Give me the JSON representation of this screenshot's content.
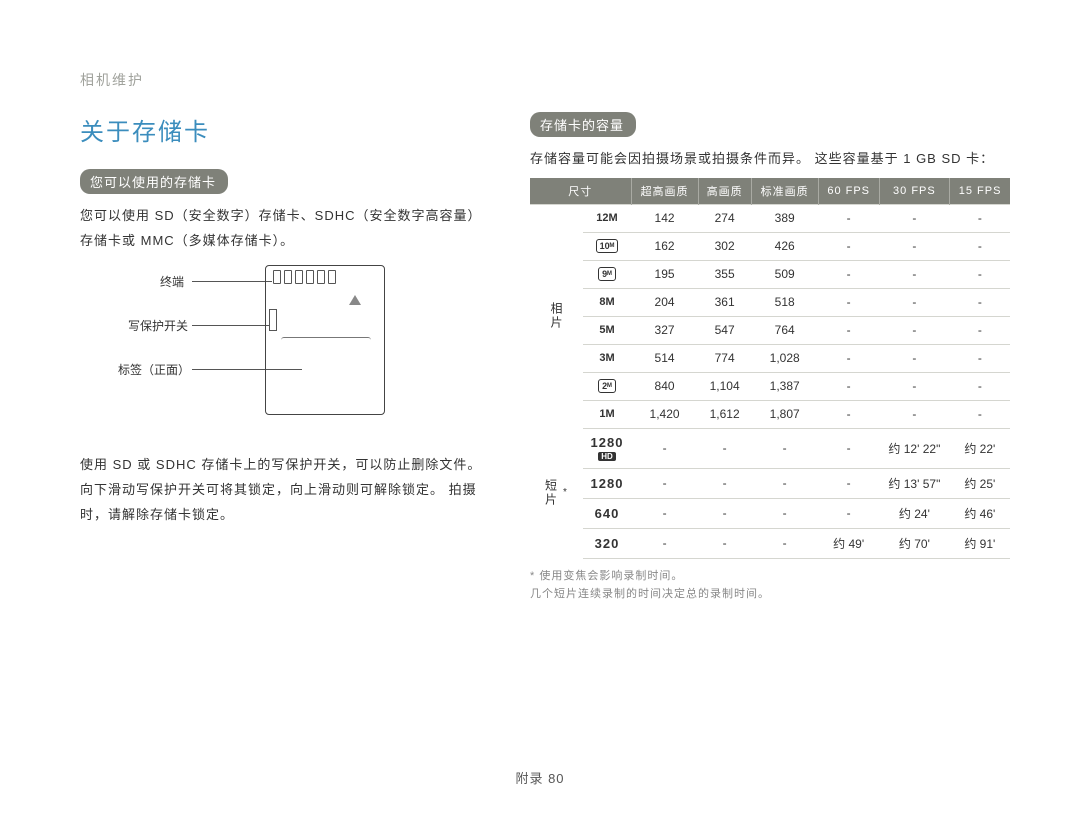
{
  "header": {
    "breadcrumb": "相机维护"
  },
  "left": {
    "title": "关于存储卡",
    "pill": "您可以使用的存储卡",
    "intro": "您可以使用 SD（安全数字）存储卡、SDHC（安全数字高容量）存储卡或 MMC（多媒体存储卡）。",
    "diag": {
      "l1": "终端",
      "l2": "写保护开关",
      "l3": "标签（正面）"
    },
    "para2": "使用 SD 或 SDHC 存储卡上的写保护开关，可以防止删除文件。 向下滑动写保护开关可将其锁定，向上滑动则可解除锁定。 拍摄时，请解除存储卡锁定。"
  },
  "right": {
    "pill": "存储卡的容量",
    "intro": "存储容量可能会因拍摄场景或拍摄条件而异。 这些容量基于 1 GB SD 卡：",
    "headers": [
      "尺寸",
      "超高画质",
      "高画质",
      "标准画质",
      "60 FPS",
      "30 FPS",
      "15 FPS"
    ],
    "vcat_photo": "相片",
    "vcat_video": "短片",
    "photo_sizes": [
      "12M",
      "10M",
      "9M",
      "8M",
      "5M",
      "3M",
      "2M",
      "1M"
    ],
    "photo_icon": [
      false,
      true,
      true,
      false,
      false,
      false,
      true,
      false
    ],
    "photo_super": [
      "142",
      "162",
      "195",
      "204",
      "327",
      "514",
      "840",
      "1,420"
    ],
    "photo_high": [
      "274",
      "302",
      "355",
      "361",
      "547",
      "774",
      "1,104",
      "1,612"
    ],
    "photo_std": [
      "389",
      "426",
      "509",
      "518",
      "764",
      "1,028",
      "1,387",
      "1,807"
    ],
    "video_rows": [
      {
        "sz": "1280",
        "hd": true,
        "c1": "-",
        "c2": "-",
        "c3": "-",
        "c60": "-",
        "c30": "约 12' 22\"",
        "c15": "约 22'"
      },
      {
        "sz": "1280",
        "hd": false,
        "c1": "-",
        "c2": "-",
        "c3": "-",
        "c60": "-",
        "c30": "约 13' 57\"",
        "c15": "约 25'"
      },
      {
        "sz": "640",
        "hd": false,
        "c1": "-",
        "c2": "-",
        "c3": "-",
        "c60": "-",
        "c30": "约 24'",
        "c15": "约 46'"
      },
      {
        "sz": "320",
        "hd": false,
        "c1": "-",
        "c2": "-",
        "c3": "-",
        "c60": "约 49'",
        "c30": "约 70'",
        "c15": "约 91'"
      }
    ],
    "footnote1": "* 使用变焦会影响录制时间。",
    "footnote2": "几个短片连续录制的时间决定总的录制时间。",
    "video_star": "*"
  },
  "footer": {
    "text": "附录 80"
  }
}
